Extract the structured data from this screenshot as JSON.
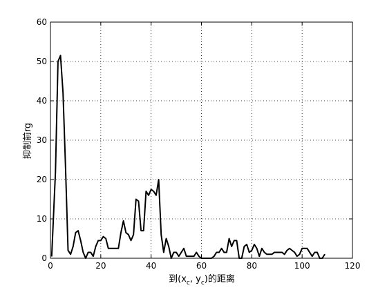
{
  "chart_data": {
    "type": "line",
    "xlabel": {
      "prefix": "到(x",
      "sub1": "c",
      "mid": ", y",
      "sub2": "c",
      "suffix": ")的距离"
    },
    "ylabel": "抑制前rg",
    "xlim": [
      0,
      120
    ],
    "ylim": [
      0,
      60
    ],
    "xticks": [
      0,
      20,
      40,
      60,
      80,
      100,
      120
    ],
    "yticks": [
      0,
      10,
      20,
      30,
      40,
      50,
      60
    ],
    "grid": true,
    "line_color": "#000000",
    "series": [
      {
        "x": [
          0.5,
          2,
          3,
          4,
          5,
          6,
          7,
          8,
          9,
          10,
          11,
          12,
          13,
          14,
          15,
          16,
          17,
          18,
          19,
          20,
          21,
          22,
          23,
          24,
          25,
          26,
          27,
          28,
          29,
          30,
          31,
          32,
          33,
          34,
          35,
          36,
          37,
          38,
          39,
          40,
          41,
          42,
          43,
          44,
          45,
          46,
          47,
          48,
          49,
          50,
          51,
          52,
          53,
          54,
          55,
          56,
          57,
          58,
          59,
          60,
          61,
          62,
          63,
          64,
          65,
          66,
          67,
          68,
          69,
          70,
          71,
          72,
          73,
          74,
          75,
          76,
          77,
          78,
          79,
          80,
          81,
          82,
          83,
          84,
          85,
          86,
          87,
          88,
          89,
          90,
          91,
          92,
          93,
          94,
          95,
          96,
          97,
          98,
          99,
          100,
          101,
          102,
          103,
          104,
          105,
          106,
          107,
          108,
          109
        ],
        "y": [
          0.5,
          22,
          50,
          51.5,
          42,
          23,
          2,
          1,
          3,
          6.5,
          7,
          4.5,
          1.5,
          0,
          1.5,
          1.5,
          0.5,
          3,
          4.5,
          4.5,
          5.5,
          5,
          2.5,
          2.5,
          2.5,
          2.5,
          2.5,
          6.5,
          9.5,
          6.5,
          6,
          4.5,
          6,
          15,
          14.5,
          7,
          7,
          17,
          16,
          17.5,
          17,
          16,
          20,
          6,
          1.5,
          5,
          3,
          0,
          1.5,
          1.5,
          0.5,
          1.5,
          2.5,
          0.5,
          0.5,
          0.5,
          0.5,
          1.5,
          0.5,
          0,
          0,
          0,
          0,
          0,
          0.5,
          1.5,
          1.5,
          2.5,
          1.5,
          1.5,
          5,
          3,
          4.5,
          4.5,
          0,
          0,
          3,
          3.5,
          1.5,
          2,
          3.5,
          2.5,
          0.5,
          2.5,
          1.5,
          1,
          1,
          1,
          1.5,
          1.5,
          1.5,
          1.5,
          1,
          2,
          2.5,
          2,
          1.5,
          0.5,
          1,
          2.5,
          2.5,
          2.5,
          1.5,
          0.5,
          1.5,
          1.5,
          0,
          0,
          1
        ]
      }
    ]
  }
}
